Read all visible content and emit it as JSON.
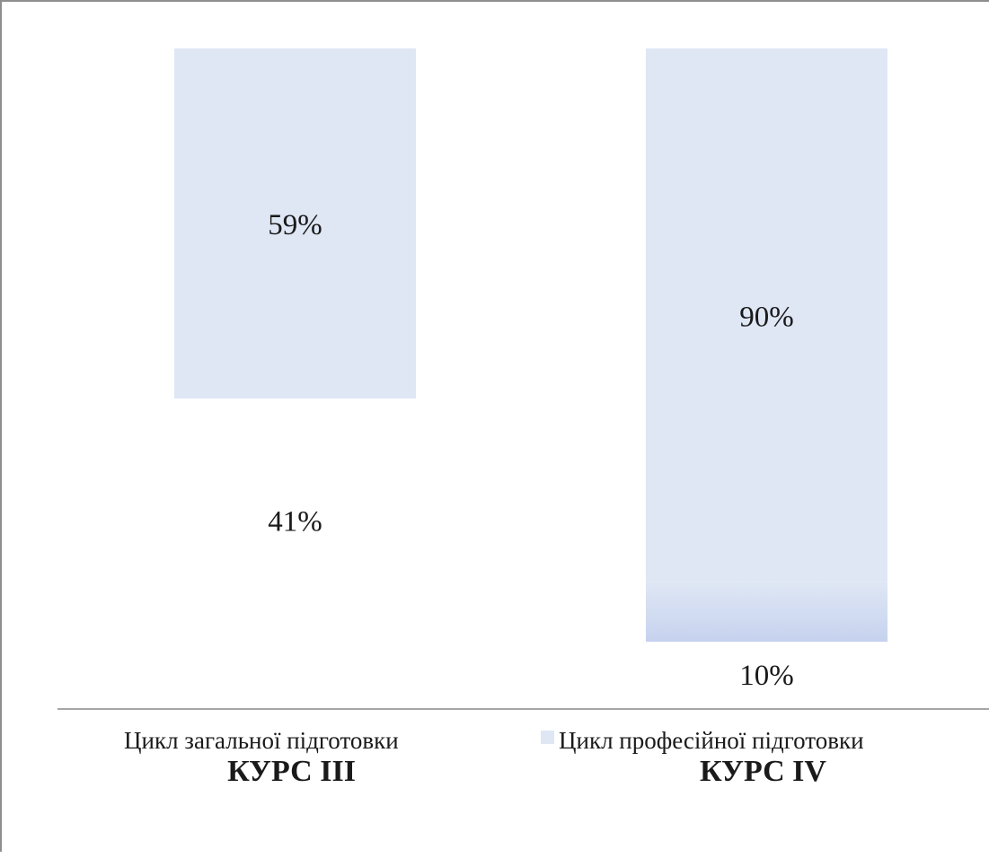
{
  "chart_data": {
    "type": "bar",
    "stacked": true,
    "percent_stacked": true,
    "categories": [
      "КУРС III",
      "КУРС IV"
    ],
    "series": [
      {
        "name": "Цикл загальної підготовки",
        "values": [
          41,
          10
        ],
        "labels": [
          "41%",
          "10%"
        ],
        "color": "#ffffff"
      },
      {
        "name": "Цикл професійної підготовки",
        "values": [
          59,
          90
        ],
        "labels": [
          "59%",
          "90%"
        ],
        "color": "#dfe7f5"
      }
    ],
    "ylim": [
      0,
      100
    ],
    "grid": false,
    "legend": "bottom"
  }
}
